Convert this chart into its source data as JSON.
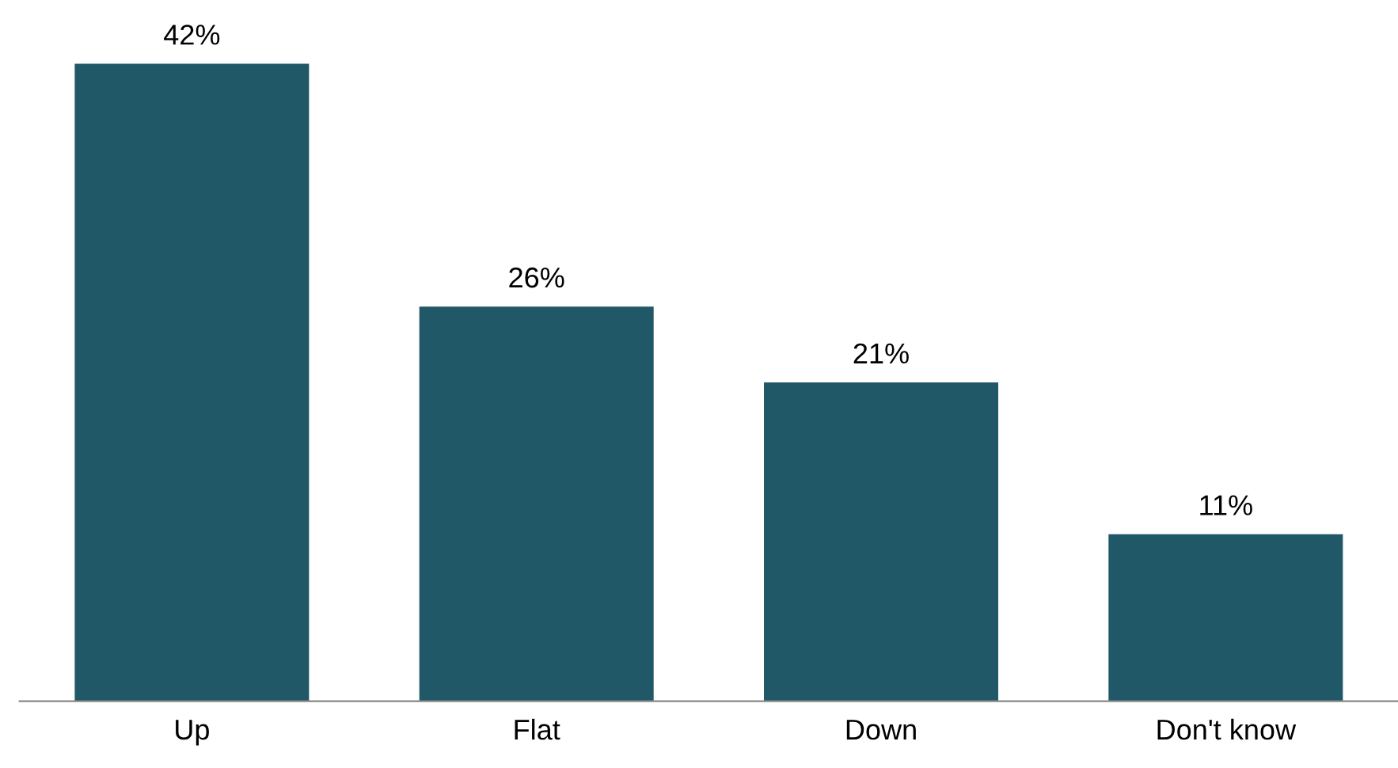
{
  "chart_data": {
    "type": "bar",
    "categories": [
      "Up",
      "Flat",
      "Down",
      "Don't know"
    ],
    "values": [
      42,
      26,
      21,
      11
    ],
    "value_labels": [
      "42%",
      "26%",
      "21%",
      "11%"
    ],
    "color": "#215868",
    "grid": false,
    "legend": false
  }
}
